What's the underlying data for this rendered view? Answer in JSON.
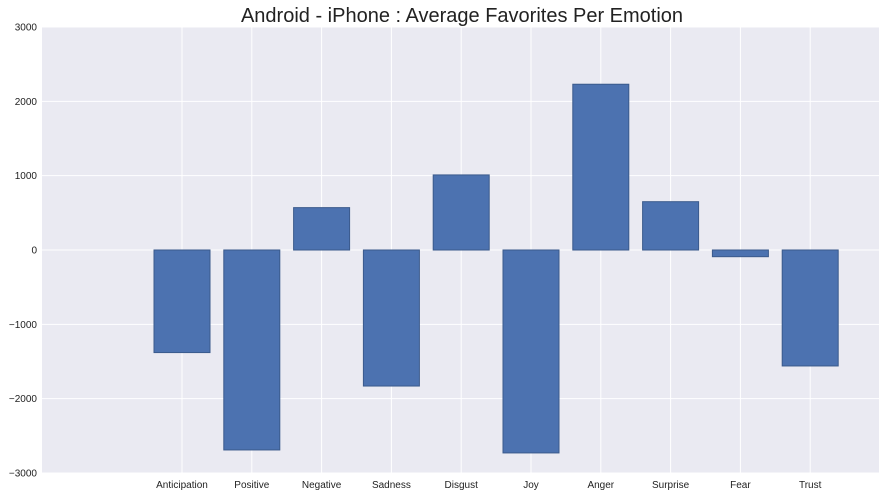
{
  "chart_data": {
    "type": "bar",
    "title": "Android - iPhone : Average Favorites Per Emotion",
    "xlabel": "",
    "ylabel": "",
    "categories": [
      "Anticipation",
      "Positive",
      "Negative",
      "Sadness",
      "Disgust",
      "Joy",
      "Anger",
      "Surprise",
      "Fear",
      "Trust"
    ],
    "values": [
      -1380,
      -2690,
      570,
      -1830,
      1010,
      -2730,
      2230,
      650,
      -90,
      -1560
    ],
    "ylim": [
      -3000,
      3000
    ],
    "yticks": [
      -3000,
      -2000,
      -1000,
      0,
      1000,
      2000,
      3000
    ],
    "ytick_labels": [
      "−3000",
      "−2000",
      "−1000",
      "0",
      "1000",
      "2000",
      "3000"
    ],
    "grid": true,
    "legend": "none",
    "colors": {
      "bar": "#4c72b0",
      "bar_edge": "#3a5a8c",
      "plot_background": "#eaeaf2",
      "grid": "#ffffff"
    }
  }
}
